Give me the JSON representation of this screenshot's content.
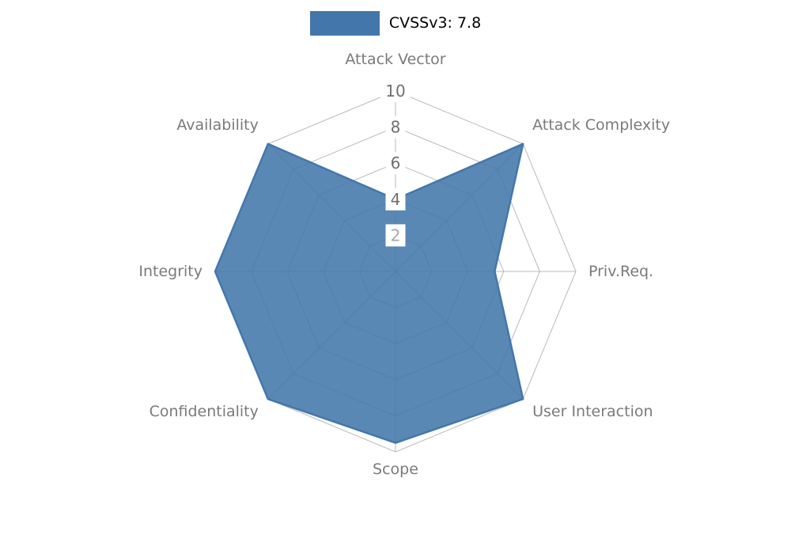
{
  "legend": {
    "label": "CVSSv3: 7.8"
  },
  "chart_data": {
    "type": "radar",
    "title": "CVSSv3: 7.8",
    "legend_position": "top-center",
    "grid": "spider-web",
    "axes": [
      "Attack Vector",
      "Attack Complexity",
      "Priv.Req.",
      "User Interaction",
      "Scope",
      "Confidentiality",
      "Integrity",
      "Availability"
    ],
    "series": [
      {
        "name": "CVSSv3: 7.8",
        "values": [
          4,
          10,
          5.5,
          10,
          9.5,
          10,
          10,
          10
        ]
      }
    ],
    "ticks": [
      2,
      4,
      6,
      8,
      10
    ],
    "max": 10,
    "colors": {
      "fill": "#4377ab",
      "grid": "#b9b9b9",
      "axis_label": "#7a7a7a",
      "tick_label": "#6f6f6f",
      "tick_label_light": "#a9a9a9",
      "tick_box": "#ffffff",
      "title": "#000000"
    }
  }
}
